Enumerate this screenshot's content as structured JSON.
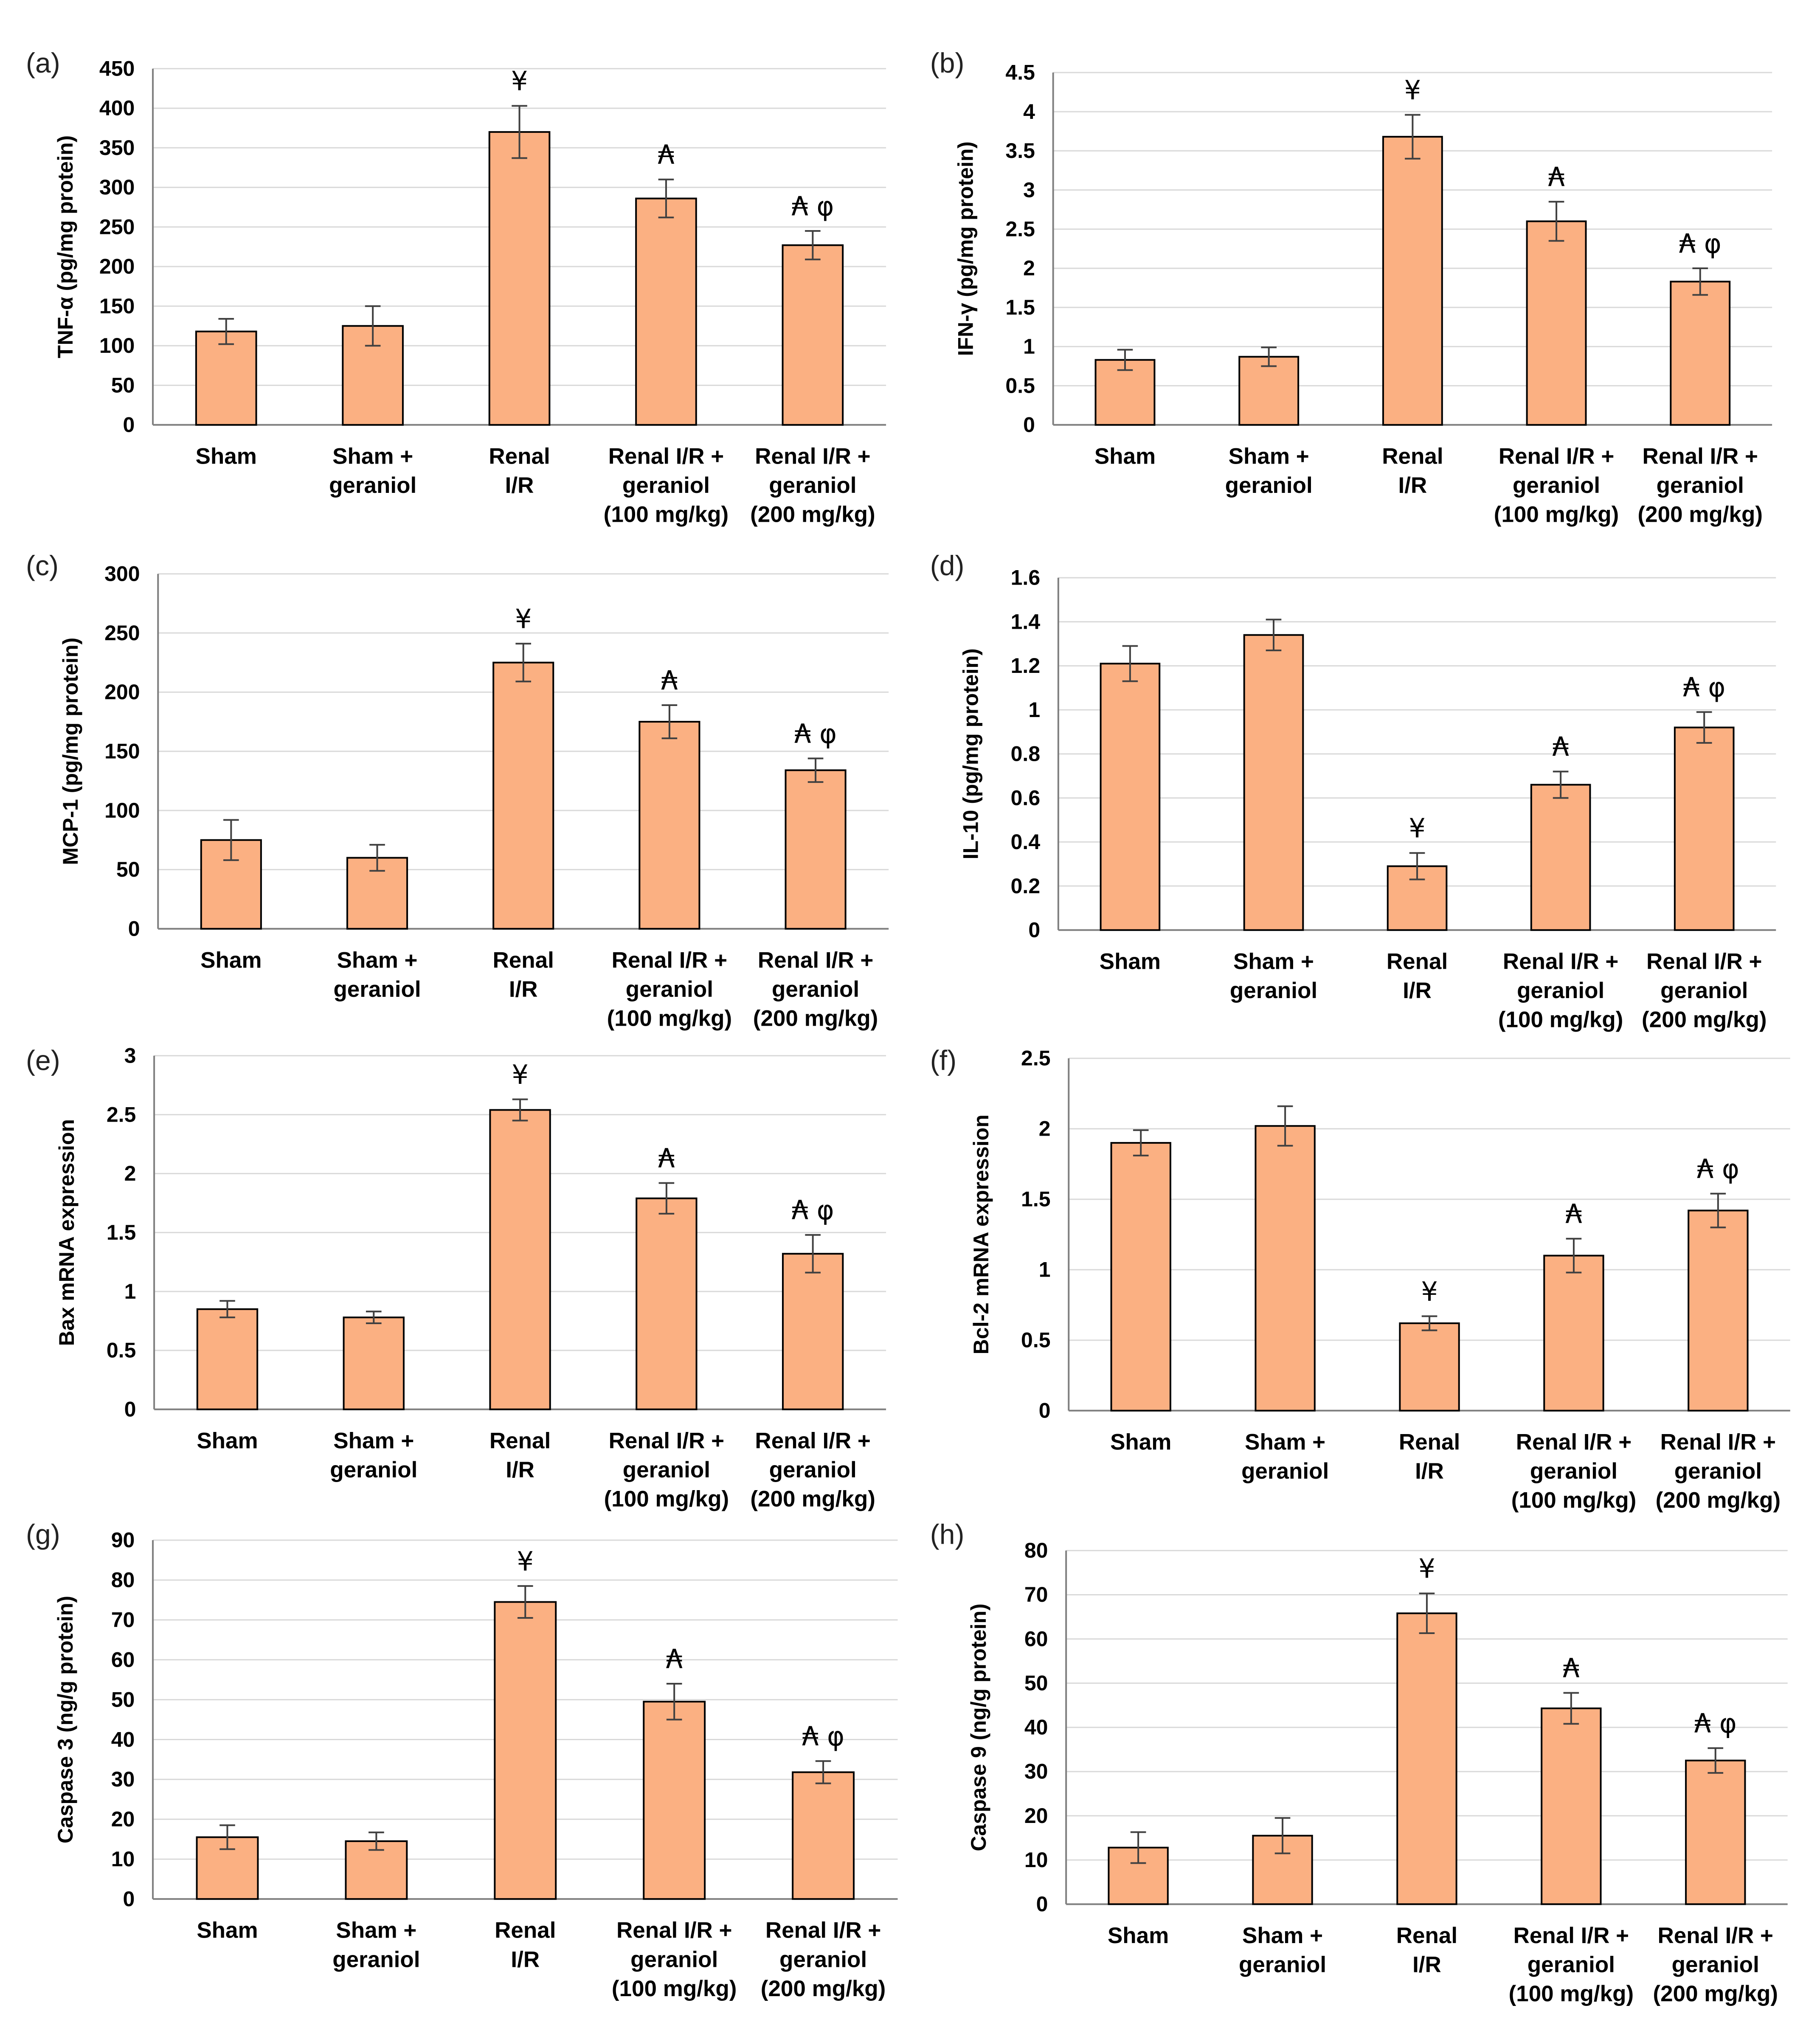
{
  "style": {
    "bar_color": "#fbb082",
    "bar_edge": "#000000",
    "grid_color": "#d9d9d9"
  },
  "chart_data": [
    {
      "type": "bar",
      "panel": "(a)",
      "ylabel": "TNF-α (pg/mg protein)",
      "ylim": [
        0,
        450
      ],
      "yticks": [
        "0",
        "50",
        "100",
        "150",
        "200",
        "250",
        "300",
        "350",
        "400",
        "450"
      ],
      "categories": [
        [
          "Sham"
        ],
        [
          "Sham +",
          "geraniol"
        ],
        [
          "Renal",
          "I/R"
        ],
        [
          "Renal I/R +",
          "geraniol",
          "(100 mg/kg)"
        ],
        [
          "Renal I/R +",
          "geraniol",
          "(200 mg/kg)"
        ]
      ],
      "values": [
        118,
        125,
        370,
        286,
        227
      ],
      "errors": [
        16,
        25,
        33,
        24,
        18
      ],
      "annotations": [
        "",
        "",
        "¥",
        "₳",
        "₳ φ"
      ]
    },
    {
      "type": "bar",
      "panel": "(b)",
      "ylabel": "IFN-γ (pg/mg protein)",
      "ylim": [
        0,
        4.5
      ],
      "yticks": [
        "0",
        "0.5",
        "1",
        "1.5",
        "2",
        "2.5",
        "3",
        "3.5",
        "4",
        "4.5"
      ],
      "categories": [
        [
          "Sham"
        ],
        [
          "Sham +",
          "geraniol"
        ],
        [
          "Renal",
          "I/R"
        ],
        [
          "Renal I/R +",
          "geraniol",
          "(100 mg/kg)"
        ],
        [
          "Renal I/R +",
          "geraniol",
          "(200 mg/kg)"
        ]
      ],
      "values": [
        0.83,
        0.87,
        3.68,
        2.6,
        1.83
      ],
      "errors": [
        0.13,
        0.12,
        0.28,
        0.25,
        0.17
      ],
      "annotations": [
        "",
        "",
        "¥",
        "₳",
        "₳ φ"
      ]
    },
    {
      "type": "bar",
      "panel": "(c)",
      "ylabel": "MCP-1 (pg/mg protein)",
      "ylim": [
        0,
        300
      ],
      "yticks": [
        "0",
        "50",
        "100",
        "150",
        "200",
        "250",
        "300"
      ],
      "categories": [
        [
          "Sham"
        ],
        [
          "Sham +",
          "geraniol"
        ],
        [
          "Renal",
          "I/R"
        ],
        [
          "Renal I/R +",
          "geraniol",
          "(100 mg/kg)"
        ],
        [
          "Renal I/R +",
          "geraniol",
          "(200 mg/kg)"
        ]
      ],
      "values": [
        75,
        60,
        225,
        175,
        134
      ],
      "errors": [
        17,
        11,
        16,
        14,
        10
      ],
      "annotations": [
        "",
        "",
        "¥",
        "₳",
        "₳ φ"
      ]
    },
    {
      "type": "bar",
      "panel": "(d)",
      "ylabel": "IL-10 (pg/mg protein)",
      "ylim": [
        0,
        1.6
      ],
      "yticks": [
        "0",
        "0.2",
        "0.4",
        "0.6",
        "0.8",
        "1",
        "1.2",
        "1.4",
        "1.6"
      ],
      "categories": [
        [
          "Sham"
        ],
        [
          "Sham +",
          "geraniol"
        ],
        [
          "Renal",
          "I/R"
        ],
        [
          "Renal I/R +",
          "geraniol",
          "(100 mg/kg)"
        ],
        [
          "Renal I/R +",
          "geraniol",
          "(200 mg/kg)"
        ]
      ],
      "values": [
        1.21,
        1.34,
        0.29,
        0.66,
        0.92
      ],
      "errors": [
        0.08,
        0.07,
        0.06,
        0.06,
        0.07
      ],
      "annotations": [
        "",
        "",
        "¥",
        "₳",
        "₳ φ"
      ]
    },
    {
      "type": "bar",
      "panel": "(e)",
      "ylabel": "Bax mRNA expression",
      "ylim": [
        0,
        3
      ],
      "yticks": [
        "0",
        "0.5",
        "1",
        "1.5",
        "2",
        "2.5",
        "3"
      ],
      "categories": [
        [
          "Sham"
        ],
        [
          "Sham +",
          "geraniol"
        ],
        [
          "Renal",
          "I/R"
        ],
        [
          "Renal I/R +",
          "geraniol",
          "(100 mg/kg)"
        ],
        [
          "Renal I/R +",
          "geraniol",
          "(200 mg/kg)"
        ]
      ],
      "values": [
        0.85,
        0.78,
        2.54,
        1.79,
        1.32
      ],
      "errors": [
        0.07,
        0.05,
        0.09,
        0.13,
        0.16
      ],
      "annotations": [
        "",
        "",
        "¥",
        "₳",
        "₳ φ"
      ]
    },
    {
      "type": "bar",
      "panel": "(f)",
      "ylabel": "Bcl-2 mRNA expression",
      "ylim": [
        0,
        2.5
      ],
      "yticks": [
        "0",
        "0.5",
        "1",
        "1.5",
        "2",
        "2.5"
      ],
      "categories": [
        [
          "Sham"
        ],
        [
          "Sham +",
          "geraniol"
        ],
        [
          "Renal",
          "I/R"
        ],
        [
          "Renal I/R +",
          "geraniol",
          "(100 mg/kg)"
        ],
        [
          "Renal I/R +",
          "geraniol",
          "(200 mg/kg)"
        ]
      ],
      "values": [
        1.9,
        2.02,
        0.62,
        1.1,
        1.42
      ],
      "errors": [
        0.09,
        0.14,
        0.05,
        0.12,
        0.12
      ],
      "annotations": [
        "",
        "",
        "¥",
        "₳",
        "₳ φ"
      ]
    },
    {
      "type": "bar",
      "panel": "(g)",
      "ylabel": "Caspase 3 (ng/g protein)",
      "ylim": [
        0,
        90
      ],
      "yticks": [
        "0",
        "10",
        "20",
        "30",
        "40",
        "50",
        "60",
        "70",
        "80",
        "90"
      ],
      "categories": [
        [
          "Sham"
        ],
        [
          "Sham +",
          "geraniol"
        ],
        [
          "Renal",
          "I/R"
        ],
        [
          "Renal I/R +",
          "geraniol",
          "(100 mg/kg)"
        ],
        [
          "Renal I/R +",
          "geraniol",
          "(200 mg/kg)"
        ]
      ],
      "values": [
        15.5,
        14.5,
        74.5,
        49.5,
        31.8
      ],
      "errors": [
        3,
        2.2,
        4,
        4.5,
        2.8
      ],
      "annotations": [
        "",
        "",
        "¥",
        "₳",
        "₳ φ"
      ]
    },
    {
      "type": "bar",
      "panel": "(h)",
      "ylabel": "Caspase 9 (ng/g protein)",
      "ylim": [
        0,
        80
      ],
      "yticks": [
        "0",
        "10",
        "20",
        "30",
        "40",
        "50",
        "60",
        "70",
        "80"
      ],
      "categories": [
        [
          "Sham"
        ],
        [
          "Sham +",
          "geraniol"
        ],
        [
          "Renal",
          "I/R"
        ],
        [
          "Renal I/R +",
          "geraniol",
          "(100 mg/kg)"
        ],
        [
          "Renal I/R +",
          "geraniol",
          "(200 mg/kg)"
        ]
      ],
      "values": [
        12.8,
        15.5,
        65.8,
        44.3,
        32.5
      ],
      "errors": [
        3.5,
        4,
        4.5,
        3.5,
        2.8
      ],
      "annotations": [
        "",
        "",
        "¥",
        "₳",
        "₳ φ"
      ]
    }
  ]
}
